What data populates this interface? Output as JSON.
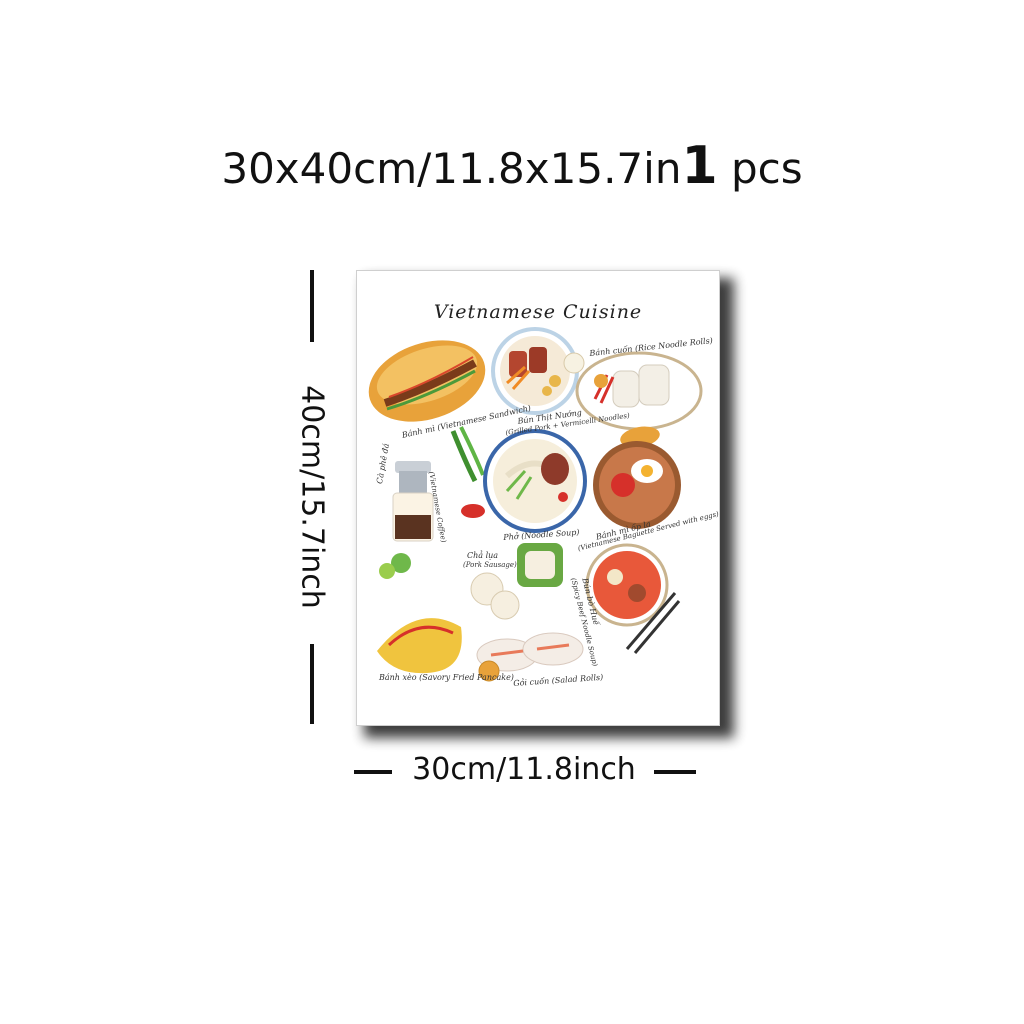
{
  "headline": {
    "size": "30x40cm/11.8x15.7in",
    "qty_number": "1",
    "qty_unit": "pcs"
  },
  "poster": {
    "title": "Vietnamese Cuisine",
    "labels": {
      "banh_mi": "Bánh mì (Vietnamese Sandwich)",
      "bun_thit_nuong": "Bún Thịt Nướng",
      "bun_thit_nuong_sub": "(Grilled Pork + Vermicelli Noodles)",
      "banh_cuon": "Bánh cuốn (Rice Noodle Rolls)",
      "ca_phe_da": "Cà phê đá",
      "ca_phe_sub": "(Vietnamese Coffee)",
      "pho": "Phở (Noodle Soup)",
      "banh_mi_op_la": "Bánh mì ốp la",
      "banh_mi_op_la_sub": "(Vietnamese Baguette Served with eggs)",
      "cha_lua": "Chả lụa",
      "cha_lua_sub": "(Pork Sausage)",
      "bun_bo_hue": "Bún bò Huế",
      "bun_bo_hue_sub": "(Spicy Beef Noodle Soup)",
      "banh_xeo": "Bánh xèo (Savory Fried Pancake)",
      "goi_cuon": "Gỏi cuốn (Salad Rolls)"
    }
  },
  "dimensions": {
    "width_label": "30cm/11.8inch",
    "height_label": "40cm/15.7inch"
  }
}
